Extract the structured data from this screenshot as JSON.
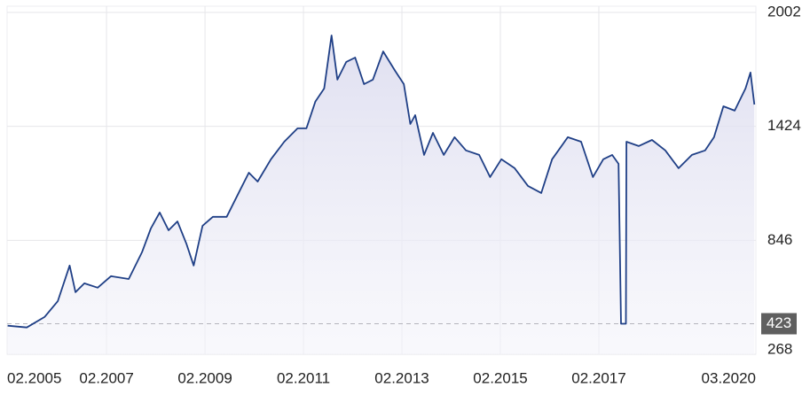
{
  "chart_data": {
    "type": "line",
    "x": [
      2005.07,
      2005.46,
      2005.82,
      2006.09,
      2006.33,
      2006.45,
      2006.63,
      2006.9,
      2007.17,
      2007.53,
      2007.8,
      2007.98,
      2008.16,
      2008.34,
      2008.52,
      2008.7,
      2008.85,
      2009.03,
      2009.24,
      2009.52,
      2009.79,
      2009.97,
      2010.15,
      2010.42,
      2010.69,
      2010.96,
      2011.14,
      2011.32,
      2011.5,
      2011.65,
      2011.77,
      2011.95,
      2012.13,
      2012.31,
      2012.49,
      2012.7,
      2012.94,
      2013.12,
      2013.25,
      2013.35,
      2013.53,
      2013.71,
      2013.93,
      2014.15,
      2014.38,
      2014.65,
      2014.87,
      2015.1,
      2015.37,
      2015.64,
      2015.91,
      2016.13,
      2016.45,
      2016.72,
      2016.96,
      2017.17,
      2017.35,
      2017.48,
      2017.53,
      2017.63,
      2017.64,
      2017.89,
      2018.16,
      2018.43,
      2018.7,
      2018.97,
      2019.24,
      2019.42,
      2019.61,
      2019.84,
      2020.06,
      2020.16,
      2020.24
    ],
    "series": [
      {
        "color": "#1f3f86",
        "values": [
          413,
          404,
          457,
          538,
          718,
          583,
          628,
          606,
          664,
          650,
          785,
          906,
          987,
          897,
          942,
          830,
          718,
          920,
          965,
          965,
          1100,
          1189,
          1144,
          1257,
          1346,
          1414,
          1414,
          1549,
          1616,
          1885,
          1661,
          1751,
          1773,
          1638,
          1661,
          1804,
          1706,
          1638,
          1436,
          1481,
          1279,
          1391,
          1279,
          1369,
          1302,
          1279,
          1167,
          1257,
          1212,
          1122,
          1086,
          1257,
          1369,
          1346,
          1167,
          1257,
          1279,
          1234,
          423,
          423,
          1346,
          1324,
          1355,
          1302,
          1212,
          1279,
          1302,
          1369,
          1526,
          1504,
          1616,
          1697,
          1535
        ]
      }
    ],
    "xlim": [
      2005.06,
      2020.27
    ],
    "xticks": [
      {
        "value": 2005.08,
        "label": "02.2005"
      },
      {
        "value": 2007.08,
        "label": "02.2007"
      },
      {
        "value": 2009.08,
        "label": "02.2009"
      },
      {
        "value": 2011.08,
        "label": "02.2011"
      },
      {
        "value": 2013.08,
        "label": "02.2013"
      },
      {
        "value": 2015.08,
        "label": "02.2015"
      },
      {
        "value": 2017.08,
        "label": "02.2017"
      },
      {
        "value": 2020.17,
        "label": "03.2020"
      }
    ],
    "ylim": [
      268,
      2002
    ],
    "yticks": [
      268,
      846,
      1424,
      2002
    ],
    "reference_line": {
      "value": 423
    },
    "grid": true
  }
}
